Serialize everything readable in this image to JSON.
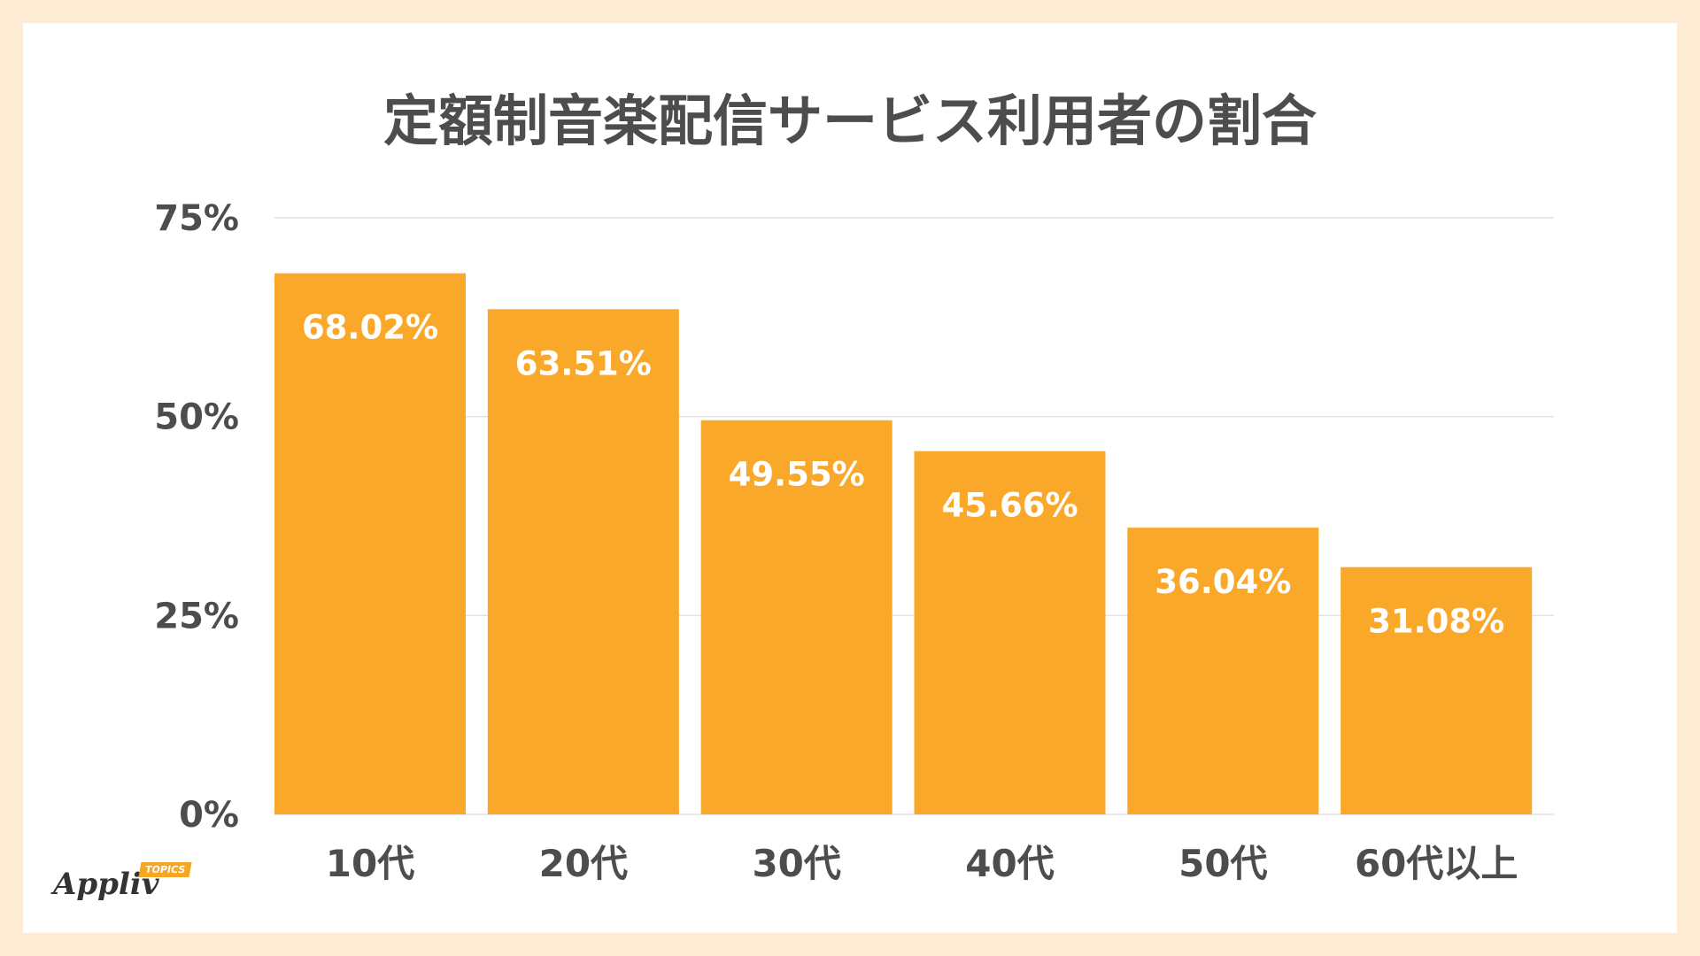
{
  "title": "定額制音楽配信サービス利用者の割合",
  "logo": {
    "text": "Appliv",
    "tag": "TOPICS"
  },
  "chart_data": {
    "type": "bar",
    "title": "定額制音楽配信サービス利用者の割合",
    "xlabel": "",
    "ylabel": "",
    "categories": [
      "10代",
      "20代",
      "30代",
      "40代",
      "50代",
      "60代以上"
    ],
    "values": [
      68.02,
      63.51,
      49.55,
      45.66,
      36.04,
      31.08
    ],
    "data_labels": [
      "68.02%",
      "63.51%",
      "49.55%",
      "45.66%",
      "36.04%",
      "31.08%"
    ],
    "ylim": [
      0,
      75
    ],
    "yticks": [
      0,
      25,
      50,
      75
    ],
    "ytick_labels": [
      "0%",
      "25%",
      "50%",
      "75%"
    ],
    "grid": true,
    "legend": "none",
    "bar_color": "#F9A829"
  }
}
